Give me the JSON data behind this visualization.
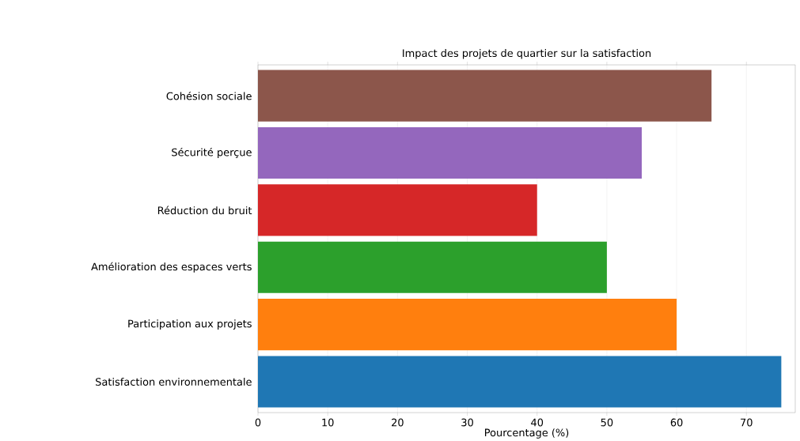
{
  "chart_data": {
    "type": "bar",
    "orientation": "horizontal",
    "title": "Impact des projets de quartier sur la satisfaction",
    "xlabel": "Pourcentage (%)",
    "categories": [
      "Cohésion sociale",
      "Sécurité perçue",
      "Réduction du bruit",
      "Amélioration des espaces verts",
      "Participation aux projets",
      "Satisfaction environnementale"
    ],
    "values": [
      65,
      55,
      40,
      50,
      60,
      75
    ],
    "colors": [
      "#8c564b",
      "#9467bd",
      "#d62728",
      "#2ca02c",
      "#ff7f0e",
      "#1f77b4"
    ],
    "xlim": [
      0,
      77
    ],
    "xticks": [
      0,
      10,
      20,
      30,
      40,
      50,
      60,
      70
    ],
    "grid": "x"
  }
}
